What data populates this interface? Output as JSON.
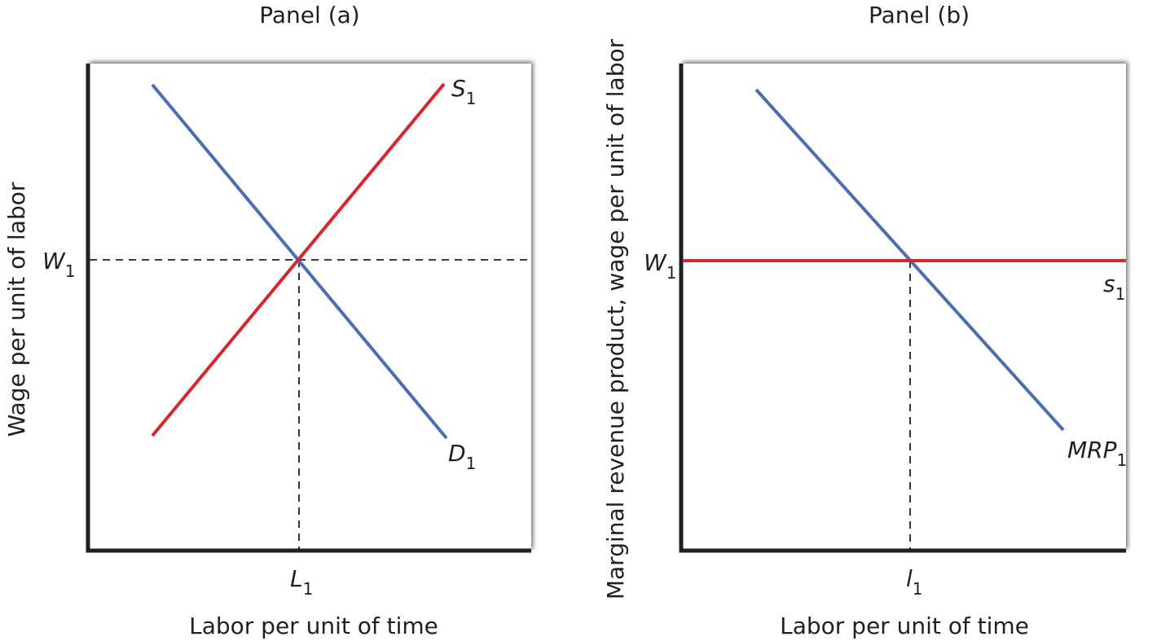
{
  "panels": [
    {
      "title": "Panel (a)",
      "y_axis_label": "Wage per unit of labor",
      "x_axis_label": "Labor per unit of time",
      "wage_label": {
        "main": "W",
        "sub": "1"
      },
      "quantity_label": {
        "main": "L",
        "sub": "1"
      },
      "supply_label": {
        "main": "S",
        "sub": "1"
      },
      "demand_label": {
        "main": "D",
        "sub": "1"
      }
    },
    {
      "title": "Panel (b)",
      "y_axis_label": "Marginal revenue product, wage per unit of labor",
      "x_axis_label": "Labor per unit of time",
      "wage_label": {
        "main": "W",
        "sub": "1"
      },
      "quantity_label": {
        "main": "l",
        "sub": "1"
      },
      "supply_label": {
        "main": "s",
        "sub": "1"
      },
      "demand_label": {
        "main": "MRP",
        "sub": "1"
      }
    }
  ]
}
